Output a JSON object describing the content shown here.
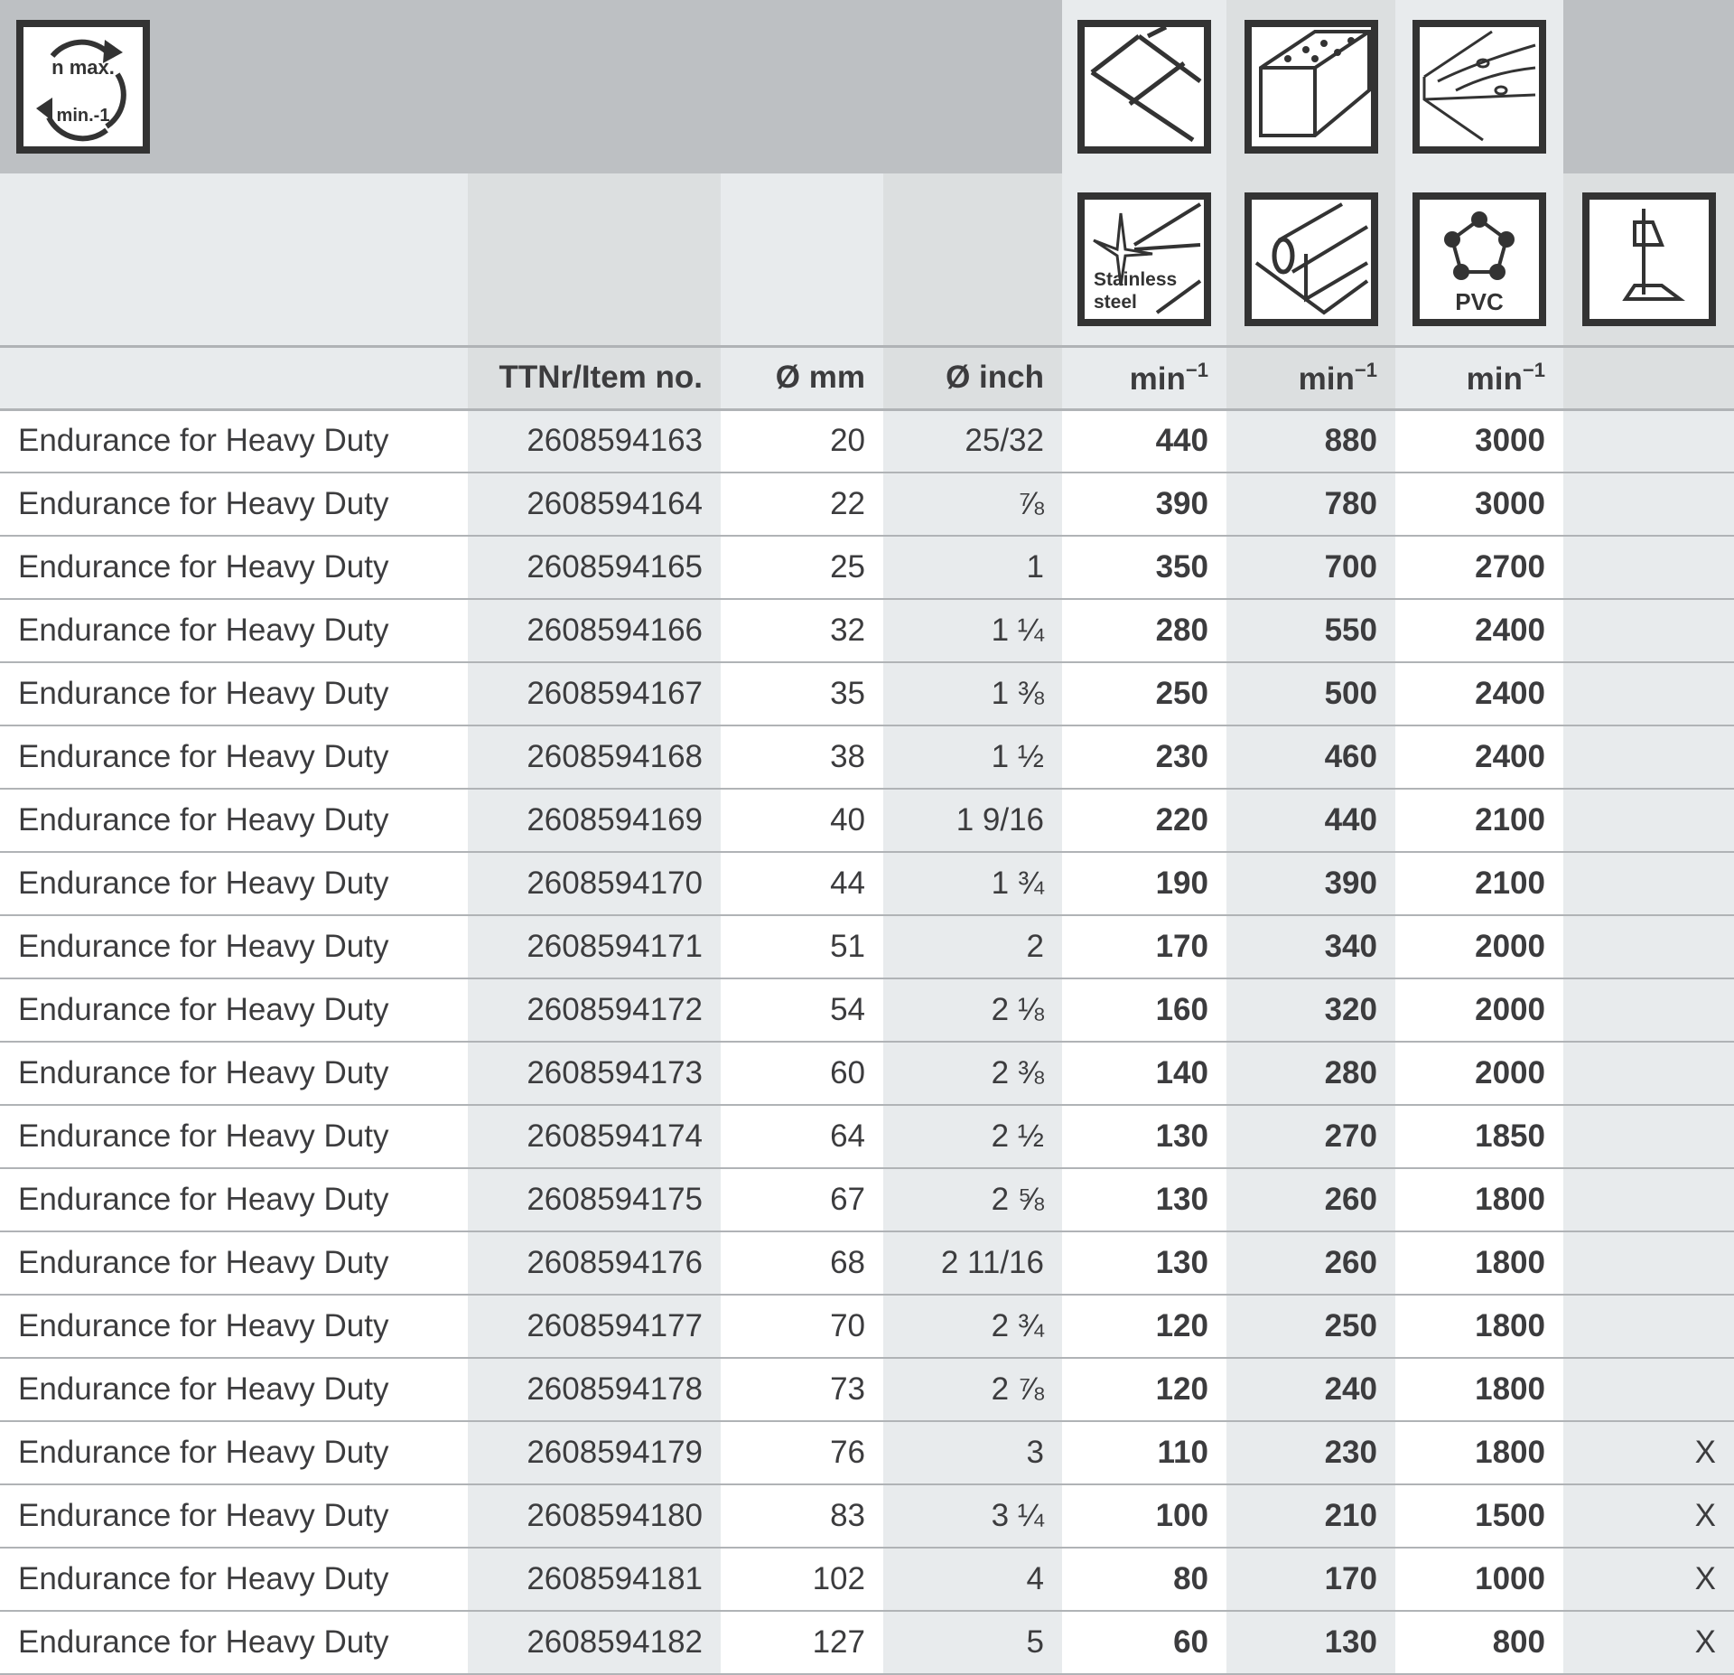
{
  "header": {
    "speed_icon": {
      "name": "max-speed-icon",
      "line1": "n max.",
      "line2": "min.-1"
    },
    "material_icons_top": [
      "tile-icon",
      "brick-icon",
      "wood-icon"
    ],
    "material_icons_bottom": [
      {
        "name": "stainless-steel-icon",
        "text": "Stainless steel"
      },
      {
        "name": "metal-profile-icon"
      },
      {
        "name": "pvc-icon",
        "text": "PVC"
      },
      {
        "name": "drill-stand-icon"
      }
    ],
    "columns": {
      "item": "TTNr/Item no.",
      "mm": "Ø mm",
      "inch": "Ø inch",
      "speed": "min",
      "speed_exp": "−1"
    }
  },
  "rows": [
    {
      "name": "Endurance for Heavy Duty",
      "item": "2608594163",
      "mm": "20",
      "inch": "25/32",
      "s1": "440",
      "s2": "880",
      "s3": "3000",
      "stand": ""
    },
    {
      "name": "Endurance for Heavy Duty",
      "item": "2608594164",
      "mm": "22",
      "inch": "⅞",
      "s1": "390",
      "s2": "780",
      "s3": "3000",
      "stand": ""
    },
    {
      "name": "Endurance for Heavy Duty",
      "item": "2608594165",
      "mm": "25",
      "inch": "1",
      "s1": "350",
      "s2": "700",
      "s3": "2700",
      "stand": ""
    },
    {
      "name": "Endurance for Heavy Duty",
      "item": "2608594166",
      "mm": "32",
      "inch": "1 ¼",
      "s1": "280",
      "s2": "550",
      "s3": "2400",
      "stand": ""
    },
    {
      "name": "Endurance for Heavy Duty",
      "item": "2608594167",
      "mm": "35",
      "inch": "1 ⅜",
      "s1": "250",
      "s2": "500",
      "s3": "2400",
      "stand": ""
    },
    {
      "name": "Endurance for Heavy Duty",
      "item": "2608594168",
      "mm": "38",
      "inch": "1 ½",
      "s1": "230",
      "s2": "460",
      "s3": "2400",
      "stand": ""
    },
    {
      "name": "Endurance for Heavy Duty",
      "item": "2608594169",
      "mm": "40",
      "inch": "1 9/16",
      "s1": "220",
      "s2": "440",
      "s3": "2100",
      "stand": ""
    },
    {
      "name": "Endurance for Heavy Duty",
      "item": "2608594170",
      "mm": "44",
      "inch": "1 ¾",
      "s1": "190",
      "s2": "390",
      "s3": "2100",
      "stand": ""
    },
    {
      "name": "Endurance for Heavy Duty",
      "item": "2608594171",
      "mm": "51",
      "inch": "2",
      "s1": "170",
      "s2": "340",
      "s3": "2000",
      "stand": ""
    },
    {
      "name": "Endurance for Heavy Duty",
      "item": "2608594172",
      "mm": "54",
      "inch": "2 ⅛",
      "s1": "160",
      "s2": "320",
      "s3": "2000",
      "stand": ""
    },
    {
      "name": "Endurance for Heavy Duty",
      "item": "2608594173",
      "mm": "60",
      "inch": "2 ⅜",
      "s1": "140",
      "s2": "280",
      "s3": "2000",
      "stand": ""
    },
    {
      "name": "Endurance for Heavy Duty",
      "item": "2608594174",
      "mm": "64",
      "inch": "2 ½",
      "s1": "130",
      "s2": "270",
      "s3": "1850",
      "stand": ""
    },
    {
      "name": "Endurance for Heavy Duty",
      "item": "2608594175",
      "mm": "67",
      "inch": "2 ⅝",
      "s1": "130",
      "s2": "260",
      "s3": "1800",
      "stand": ""
    },
    {
      "name": "Endurance for Heavy Duty",
      "item": "2608594176",
      "mm": "68",
      "inch": "2 11/16",
      "s1": "130",
      "s2": "260",
      "s3": "1800",
      "stand": ""
    },
    {
      "name": "Endurance for Heavy Duty",
      "item": "2608594177",
      "mm": "70",
      "inch": "2 ¾",
      "s1": "120",
      "s2": "250",
      "s3": "1800",
      "stand": ""
    },
    {
      "name": "Endurance for Heavy Duty",
      "item": "2608594178",
      "mm": "73",
      "inch": "2 ⅞",
      "s1": "120",
      "s2": "240",
      "s3": "1800",
      "stand": ""
    },
    {
      "name": "Endurance for Heavy Duty",
      "item": "2608594179",
      "mm": "76",
      "inch": "3",
      "s1": "110",
      "s2": "230",
      "s3": "1800",
      "stand": "X"
    },
    {
      "name": "Endurance for Heavy Duty",
      "item": "2608594180",
      "mm": "83",
      "inch": "3 ¼",
      "s1": "100",
      "s2": "210",
      "s3": "1500",
      "stand": "X"
    },
    {
      "name": "Endurance for Heavy Duty",
      "item": "2608594181",
      "mm": "102",
      "inch": "4",
      "s1": "80",
      "s2": "170",
      "s3": "1000",
      "stand": "X"
    },
    {
      "name": "Endurance for Heavy Duty",
      "item": "2608594182",
      "mm": "127",
      "inch": "5",
      "s1": "60",
      "s2": "130",
      "s3": "800",
      "stand": "X"
    }
  ]
}
